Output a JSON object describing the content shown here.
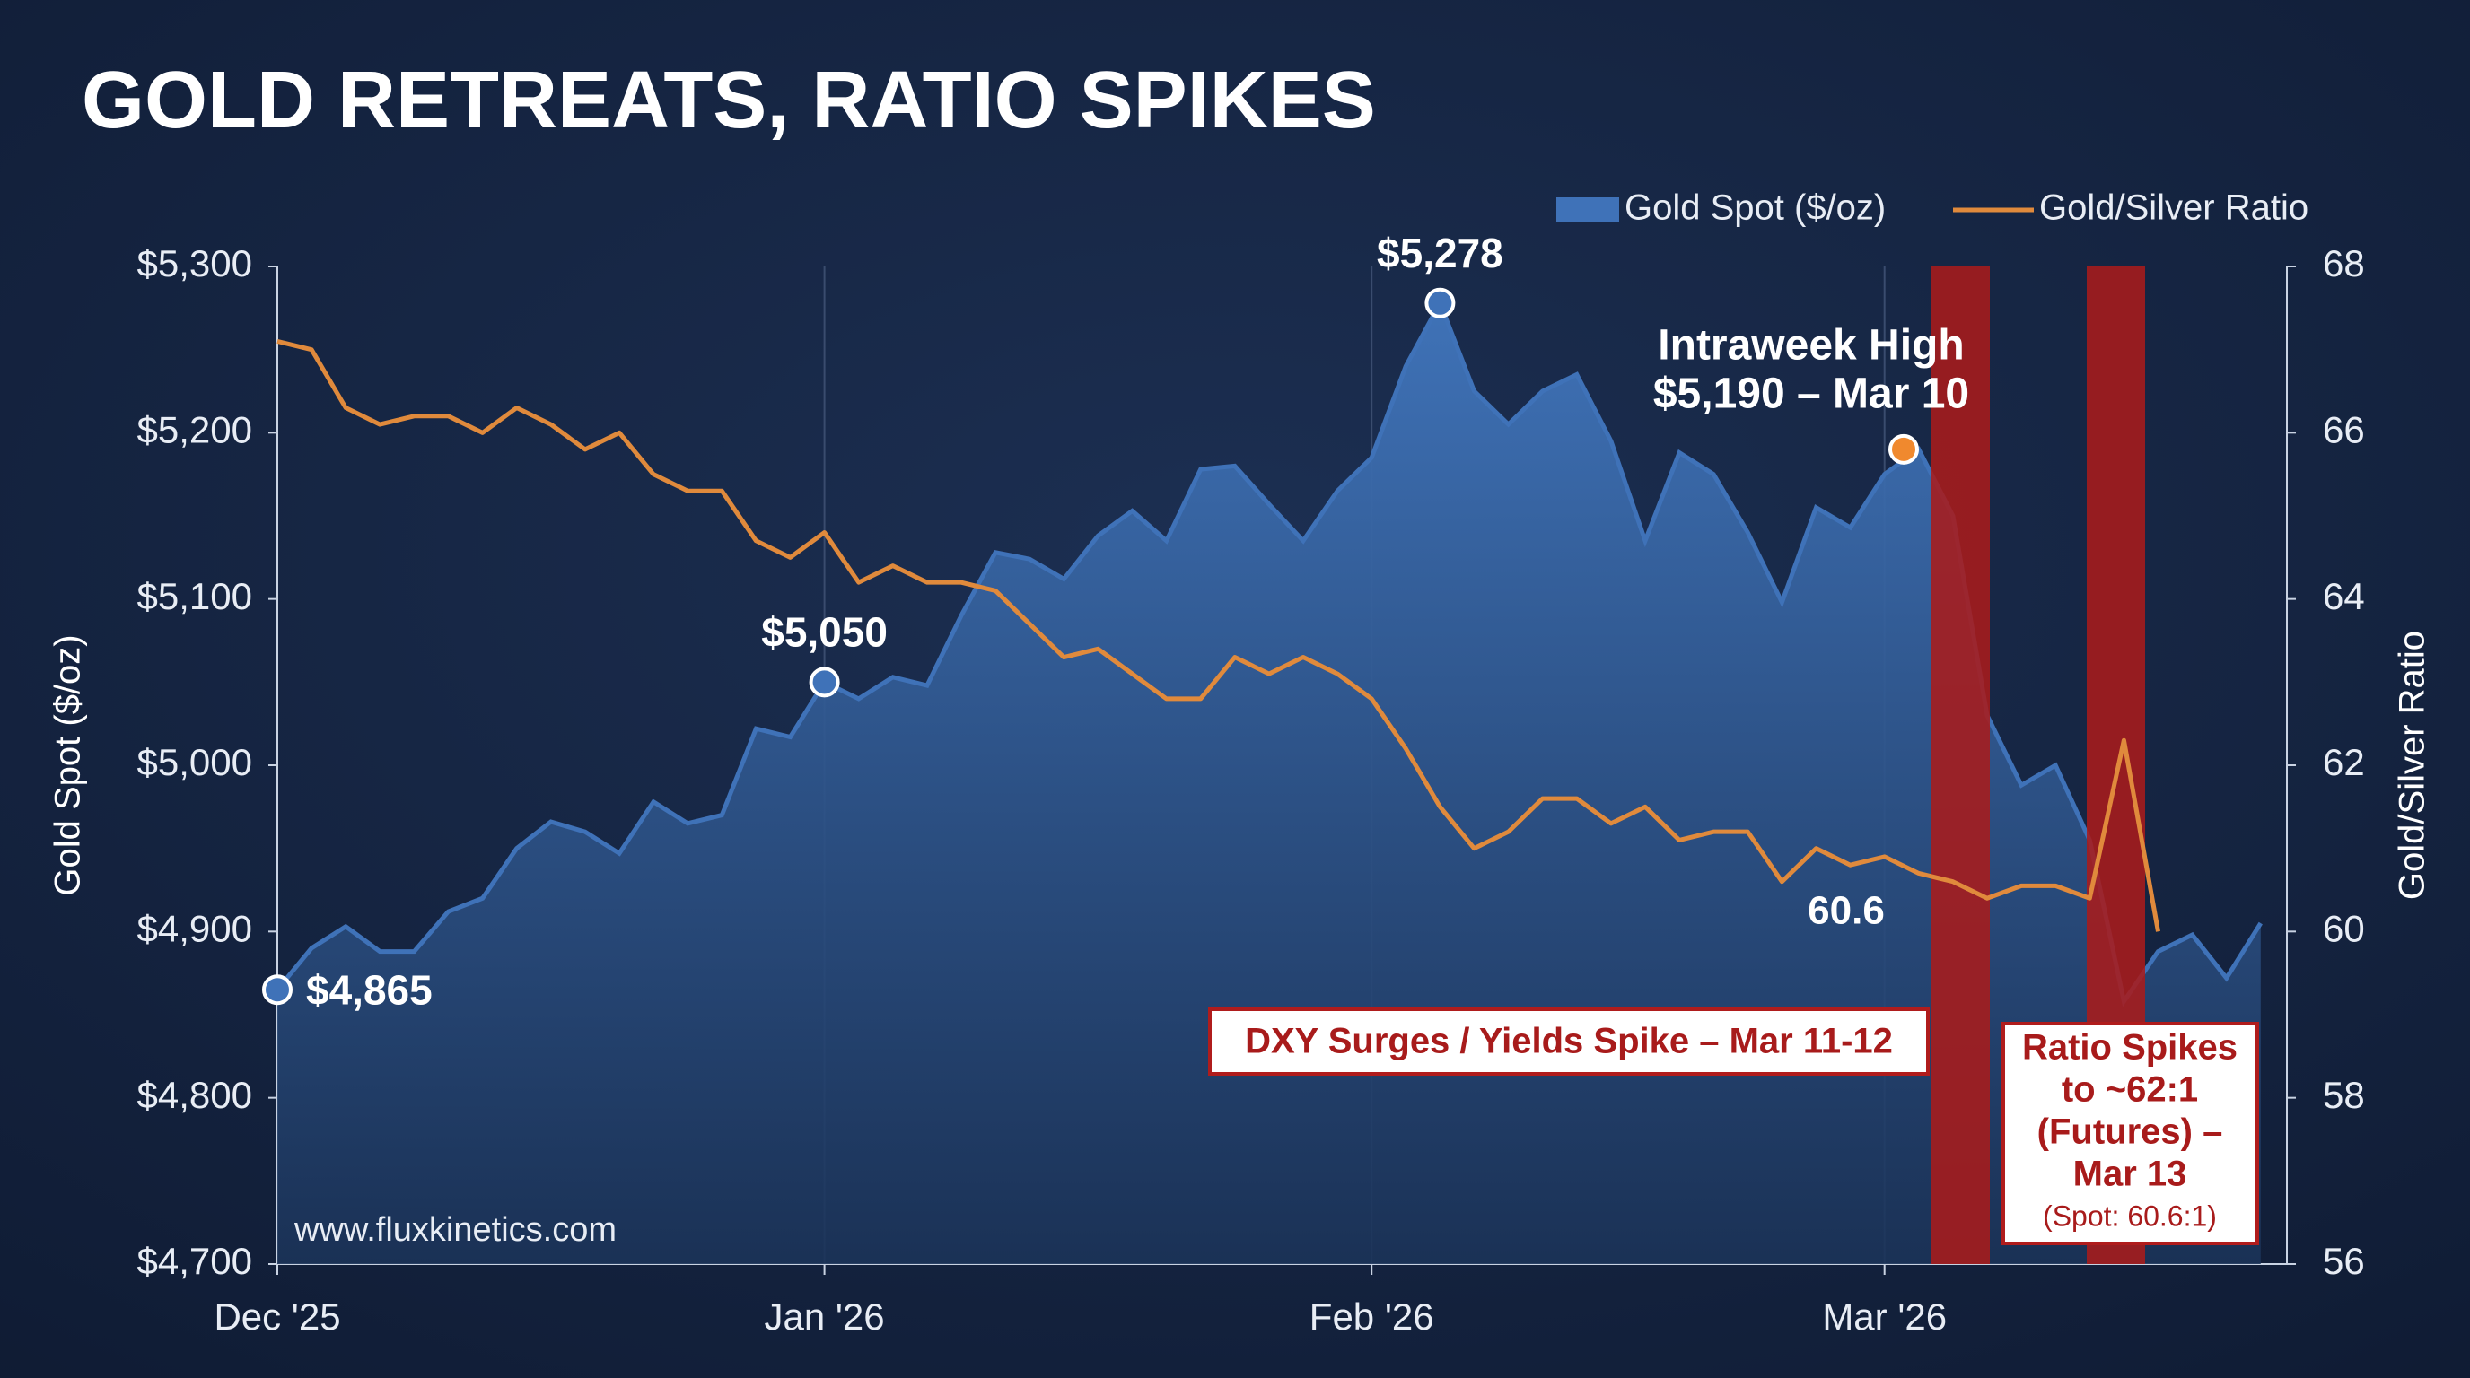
{
  "chart_data": {
    "type": "combo",
    "title": "GOLD RETREATS, RATIO SPIKES",
    "y_label": "Gold Spot ($/oz)",
    "y2_label": "Gold/Silver Ratio",
    "legend": "top-right",
    "grid": true,
    "categories": [
      "Dec '25",
      null,
      null,
      null,
      null,
      null,
      null,
      null,
      null,
      null,
      null,
      null,
      null,
      null,
      null,
      null,
      "Jan '26",
      null,
      null,
      null,
      null,
      null,
      null,
      null,
      null,
      null,
      null,
      null,
      null,
      null,
      null,
      null,
      "Feb '26",
      null,
      null,
      null,
      null,
      null,
      null,
      null,
      null,
      null,
      null,
      null,
      null,
      null,
      null,
      "Mar '26",
      null,
      null,
      null,
      null,
      null,
      null,
      null,
      null,
      null,
      null,
      null
    ],
    "ylim": [
      4700,
      5300
    ],
    "yticks": [
      {
        "value": 4700,
        "label": "$4,700"
      },
      {
        "value": 4800,
        "label": "$4,800"
      },
      {
        "value": 4900,
        "label": "$4,900"
      },
      {
        "value": 5000,
        "label": "$5,000"
      },
      {
        "value": 5100,
        "label": "$5,100"
      },
      {
        "value": 5200,
        "label": "$5,200"
      },
      {
        "value": 5300,
        "label": "$5,300"
      }
    ],
    "y2lim": [
      56,
      68
    ],
    "y2ticks": [
      56,
      58,
      60,
      62,
      64,
      66,
      68
    ],
    "series": [
      {
        "name": "Gold Spot ($/oz)",
        "type": "area",
        "color": "#3f72b8",
        "values": [
          4865,
          4890,
          4903,
          4888,
          4888,
          4912,
          4920,
          4950,
          4966,
          4960,
          4947,
          4978,
          4965,
          4970,
          5022,
          5017,
          5050,
          5040,
          5053,
          5048,
          5090,
          5128,
          5124,
          5112,
          5138,
          5153,
          5135,
          5178,
          5180,
          5157,
          5135,
          5165,
          5185,
          5240,
          5278,
          5225,
          5205,
          5225,
          5235,
          5195,
          5135,
          5188,
          5175,
          5140,
          5098,
          5155,
          5143,
          5175,
          5190,
          5150,
          5030,
          4988,
          5000,
          4955,
          4858,
          4888,
          4898,
          4872,
          4905
        ],
        "value_labels": [
          "$4,865",
          null,
          null,
          null,
          null,
          null,
          null,
          null,
          null,
          null,
          null,
          null,
          null,
          null,
          null,
          null,
          "$5,050",
          null,
          null,
          null,
          null,
          null,
          null,
          null,
          null,
          null,
          null,
          null,
          null,
          null,
          null,
          null,
          null,
          null,
          "$5,278",
          null,
          null,
          null,
          null,
          null,
          null,
          null,
          null,
          null,
          null,
          null,
          null,
          null,
          null,
          null,
          null,
          null,
          null,
          null,
          null,
          null,
          null,
          null,
          null
        ]
      },
      {
        "name": "Gold/Silver Ratio",
        "type": "line",
        "axis": "y2",
        "color": "#e08a3c",
        "values": [
          67.1,
          67.0,
          66.3,
          66.1,
          66.2,
          66.2,
          66.0,
          66.3,
          66.1,
          65.8,
          66.0,
          65.5,
          65.3,
          65.3,
          64.7,
          64.5,
          64.8,
          64.2,
          64.4,
          64.2,
          64.2,
          64.1,
          63.7,
          63.3,
          63.4,
          63.1,
          62.8,
          62.8,
          63.3,
          63.1,
          63.3,
          63.1,
          62.8,
          62.2,
          61.5,
          61.0,
          61.2,
          61.6,
          61.6,
          61.3,
          61.5,
          61.1,
          61.2,
          61.2,
          60.6,
          61.0,
          60.8,
          60.9,
          60.7,
          60.6,
          60.4,
          60.55,
          60.55,
          60.4,
          62.3,
          60.0,
          null,
          null,
          null
        ]
      }
    ],
    "intraweek": [
      "Intraweek High",
      "$5,190 – Mar 10"
    ],
    "ratio_note": "60.6",
    "dxy_note": "DXY Surges / Yields Spike – Mar 11-12",
    "ratio_spike_note": [
      "Ratio Spikes",
      "to ~62:1",
      "(Futures) –",
      "Mar 13",
      "(Spot: 60.6:1)"
    ],
    "source": "www.fluxkinetics.com"
  }
}
